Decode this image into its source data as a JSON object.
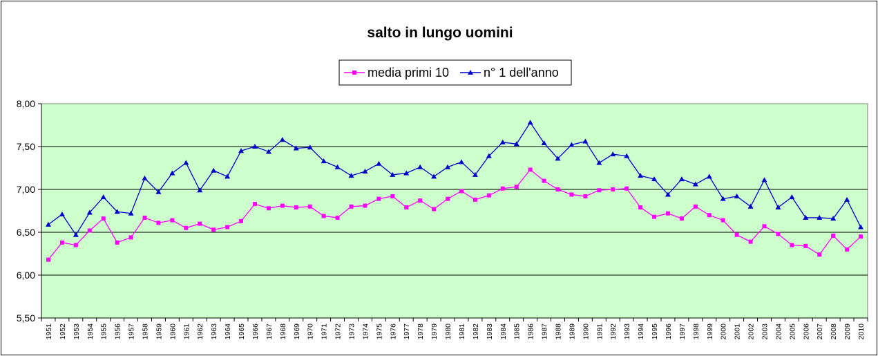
{
  "chart_data": {
    "type": "line",
    "title": "salto in lungo uomini",
    "xlabel": "",
    "ylabel": "",
    "ylim": [
      5.5,
      8.0
    ],
    "yticks": [
      "8,00",
      "7,50",
      "7,00",
      "6,50",
      "6,00",
      "5,50"
    ],
    "grid": true,
    "legend_position": "top-center",
    "plot_background": "#ccffcc",
    "categories": [
      "1951",
      "1952",
      "1953",
      "1954",
      "1955",
      "1956",
      "1957",
      "1958",
      "1959",
      "1960",
      "1961",
      "1962",
      "1963",
      "1964",
      "1965",
      "1966",
      "1967",
      "1968",
      "1969",
      "1970",
      "1971",
      "1972",
      "1973",
      "1974",
      "1975",
      "1976",
      "1977",
      "1978",
      "1979",
      "1980",
      "1981",
      "1982",
      "1983",
      "1984",
      "1985",
      "1986",
      "1987",
      "1988",
      "1989",
      "1990",
      "1991",
      "1992",
      "1993",
      "1994",
      "1995",
      "1996",
      "1997",
      "1998",
      "1999",
      "2000",
      "2001",
      "2002",
      "2003",
      "2004",
      "2005",
      "2006",
      "2007",
      "2008",
      "2009",
      "2010"
    ],
    "series": [
      {
        "name": "media primi 10",
        "color": "#ff00ff",
        "marker": "square",
        "values": [
          6.18,
          6.38,
          6.35,
          6.52,
          6.66,
          6.38,
          6.44,
          6.67,
          6.61,
          6.64,
          6.55,
          6.6,
          6.53,
          6.56,
          6.63,
          6.83,
          6.78,
          6.81,
          6.79,
          6.8,
          6.69,
          6.67,
          6.8,
          6.81,
          6.89,
          6.92,
          6.79,
          6.87,
          6.77,
          6.89,
          6.98,
          6.88,
          6.93,
          7.01,
          7.03,
          7.23,
          7.1,
          7.0,
          6.94,
          6.92,
          6.99,
          7.0,
          7.01,
          6.79,
          6.68,
          6.72,
          6.66,
          6.8,
          6.7,
          6.64,
          6.47,
          6.39,
          6.57,
          6.48,
          6.35,
          6.34,
          6.24,
          6.46,
          6.3,
          6.45
        ]
      },
      {
        "name": "n° 1 dell'anno",
        "color": "#0000cc",
        "marker": "triangle",
        "values": [
          6.59,
          6.71,
          6.47,
          6.73,
          6.91,
          6.74,
          6.72,
          7.13,
          6.97,
          7.19,
          7.31,
          6.99,
          7.22,
          7.15,
          7.45,
          7.5,
          7.44,
          7.58,
          7.48,
          7.49,
          7.33,
          7.26,
          7.16,
          7.21,
          7.3,
          7.17,
          7.19,
          7.26,
          7.15,
          7.26,
          7.32,
          7.17,
          7.39,
          7.55,
          7.53,
          7.78,
          7.54,
          7.36,
          7.52,
          7.56,
          7.31,
          7.41,
          7.39,
          7.16,
          7.12,
          6.94,
          7.12,
          7.06,
          7.15,
          6.89,
          6.92,
          6.8,
          7.11,
          6.79,
          6.91,
          6.67,
          6.67,
          6.66,
          6.88,
          6.56
        ]
      }
    ]
  }
}
